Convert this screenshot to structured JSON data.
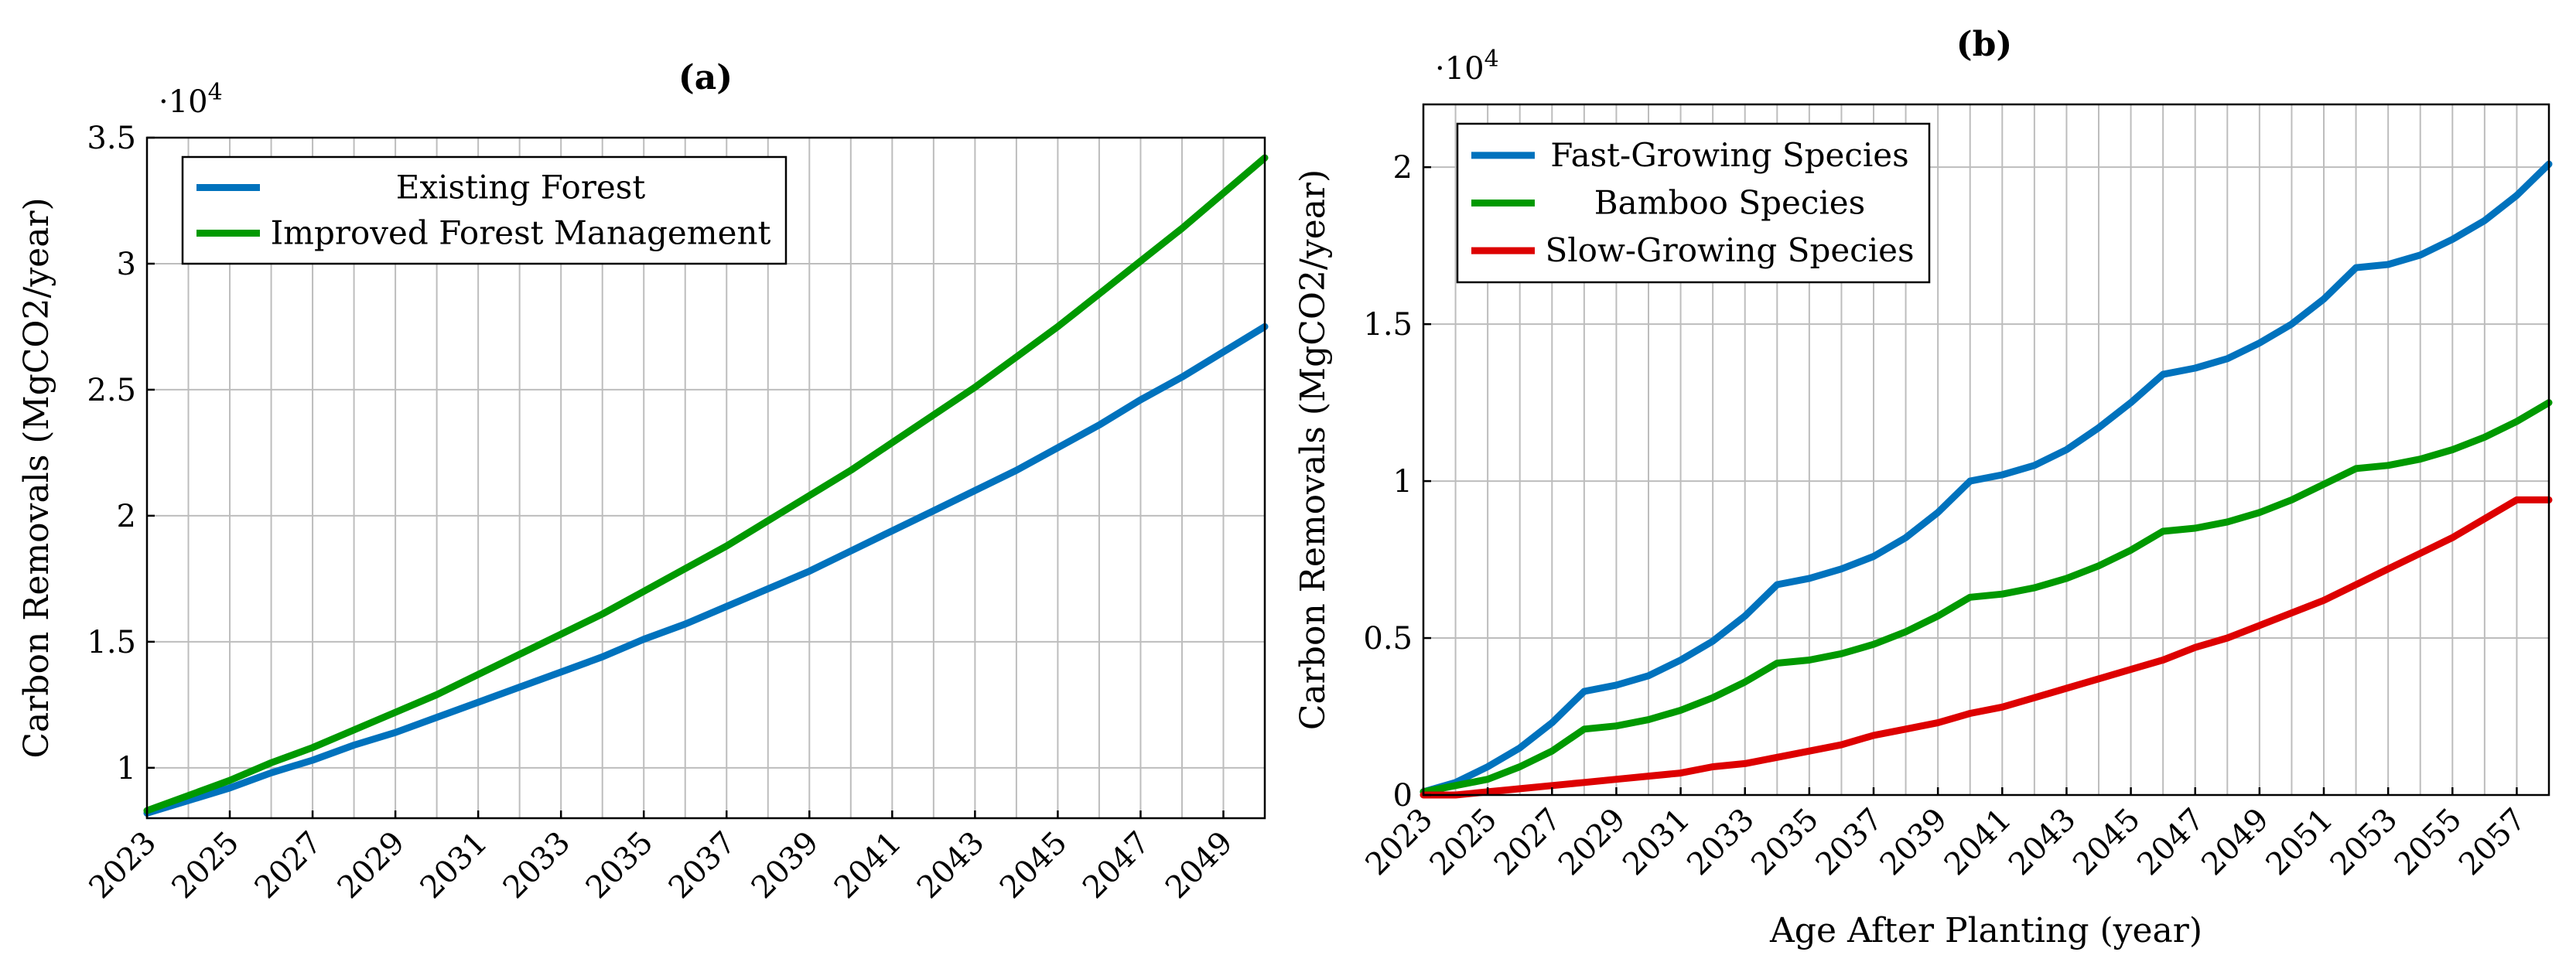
{
  "chart_data": [
    {
      "type": "line",
      "title": "(a)",
      "xlabel": "",
      "ylabel": "Carbon Removals (MgCO2/year)",
      "y_multiplier": "·10^4",
      "xlim": [
        2023,
        2050
      ],
      "ylim": [
        0.8,
        3.5
      ],
      "x_ticks": [
        2023,
        2025,
        2027,
        2029,
        2031,
        2033,
        2035,
        2037,
        2039,
        2041,
        2043,
        2045,
        2047,
        2049
      ],
      "y_ticks": [
        1,
        1.5,
        2,
        2.5,
        3,
        3.5
      ],
      "y_tick_labels": [
        "1",
        "1.5",
        "2",
        "2.5",
        "3",
        "3.5"
      ],
      "grid": true,
      "legend_position": "top-left",
      "x": [
        2023,
        2024,
        2025,
        2026,
        2027,
        2028,
        2029,
        2030,
        2031,
        2032,
        2033,
        2034,
        2035,
        2036,
        2037,
        2038,
        2039,
        2040,
        2041,
        2042,
        2043,
        2044,
        2045,
        2046,
        2047,
        2048,
        2049,
        2050
      ],
      "series": [
        {
          "name": "Existing Forest",
          "color": "#0072BD",
          "values": [
            0.82,
            0.87,
            0.92,
            0.98,
            1.03,
            1.09,
            1.14,
            1.2,
            1.26,
            1.32,
            1.38,
            1.44,
            1.51,
            1.57,
            1.64,
            1.71,
            1.78,
            1.86,
            1.94,
            2.02,
            2.1,
            2.18,
            2.27,
            2.36,
            2.46,
            2.55,
            2.65,
            2.75
          ]
        },
        {
          "name": "Improved Forest Management",
          "color": "#009900",
          "values": [
            0.83,
            0.89,
            0.95,
            1.02,
            1.08,
            1.15,
            1.22,
            1.29,
            1.37,
            1.45,
            1.53,
            1.61,
            1.7,
            1.79,
            1.88,
            1.98,
            2.08,
            2.18,
            2.29,
            2.4,
            2.51,
            2.63,
            2.75,
            2.88,
            3.01,
            3.14,
            3.28,
            3.42
          ]
        }
      ]
    },
    {
      "type": "line",
      "title": "(b)",
      "xlabel": "Age After Planting (year)",
      "ylabel": "Carbon Removals (MgCO2/year)",
      "y_multiplier": "·10^4",
      "xlim": [
        2023,
        2058
      ],
      "ylim": [
        0,
        2.2
      ],
      "x_ticks": [
        2023,
        2025,
        2027,
        2029,
        2031,
        2033,
        2035,
        2037,
        2039,
        2041,
        2043,
        2045,
        2047,
        2049,
        2051,
        2053,
        2055,
        2057
      ],
      "y_ticks": [
        0,
        0.5,
        1,
        1.5,
        2
      ],
      "y_tick_labels": [
        "0",
        "0.5",
        "1",
        "1.5",
        "2"
      ],
      "grid": true,
      "legend_position": "top-left",
      "x": [
        2023,
        2024,
        2025,
        2026,
        2027,
        2028,
        2029,
        2030,
        2031,
        2032,
        2033,
        2034,
        2035,
        2036,
        2037,
        2038,
        2039,
        2040,
        2041,
        2042,
        2043,
        2044,
        2045,
        2046,
        2047,
        2048,
        2049,
        2050,
        2051,
        2052,
        2053,
        2054,
        2055,
        2056,
        2057,
        2058
      ],
      "series": [
        {
          "name": "Fast-Growing Species",
          "color": "#0072BD",
          "values": [
            0.01,
            0.04,
            0.09,
            0.15,
            0.23,
            0.33,
            0.35,
            0.38,
            0.43,
            0.49,
            0.57,
            0.67,
            0.69,
            0.72,
            0.76,
            0.82,
            0.9,
            1.0,
            1.02,
            1.05,
            1.1,
            1.17,
            1.25,
            1.34,
            1.36,
            1.39,
            1.44,
            1.5,
            1.58,
            1.68,
            1.69,
            1.72,
            1.77,
            1.83,
            1.91,
            2.01
          ]
        },
        {
          "name": "Bamboo Species",
          "color": "#009900",
          "values": [
            0.01,
            0.03,
            0.05,
            0.09,
            0.14,
            0.21,
            0.22,
            0.24,
            0.27,
            0.31,
            0.36,
            0.42,
            0.43,
            0.45,
            0.48,
            0.52,
            0.57,
            0.63,
            0.64,
            0.66,
            0.69,
            0.73,
            0.78,
            0.84,
            0.85,
            0.87,
            0.9,
            0.94,
            0.99,
            1.04,
            1.05,
            1.07,
            1.1,
            1.14,
            1.19,
            1.25
          ]
        },
        {
          "name": "Slow-Growing Species",
          "color": "#DD0000",
          "values": [
            0.0,
            0.0,
            0.01,
            0.02,
            0.03,
            0.04,
            0.05,
            0.06,
            0.07,
            0.09,
            0.1,
            0.12,
            0.14,
            0.16,
            0.19,
            0.21,
            0.23,
            0.26,
            0.28,
            0.31,
            0.34,
            0.37,
            0.4,
            0.43,
            0.47,
            0.5,
            0.54,
            0.58,
            0.62,
            0.67,
            0.72,
            0.77,
            0.82,
            0.88,
            0.94,
            0.94
          ]
        }
      ]
    }
  ]
}
